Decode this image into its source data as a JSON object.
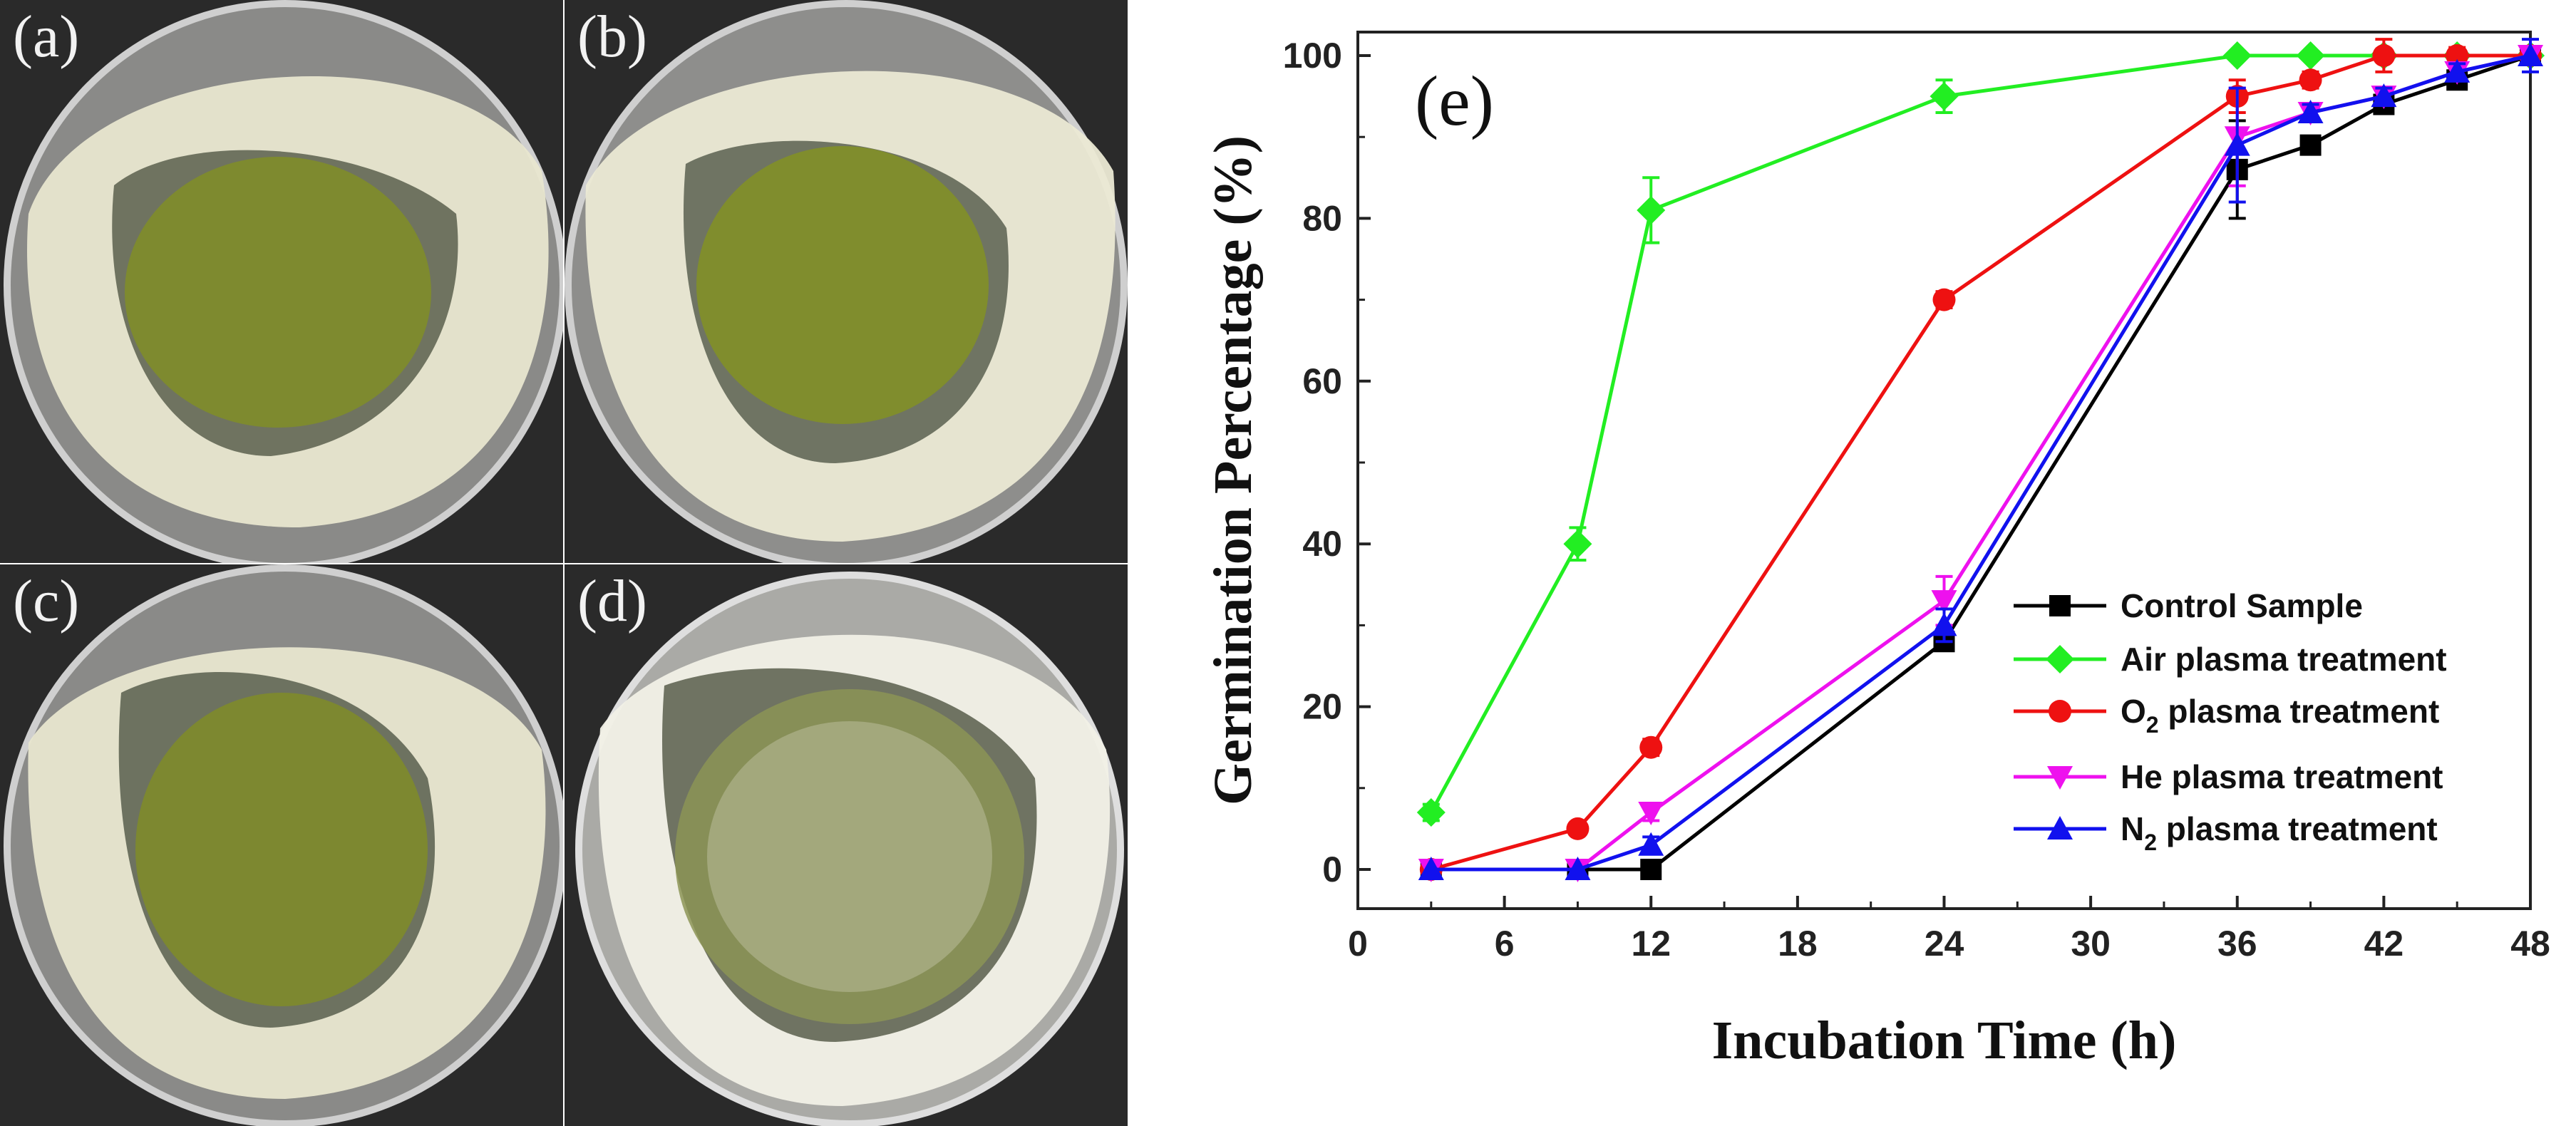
{
  "photos": [
    {
      "label": "(a)"
    },
    {
      "label": "(b)"
    },
    {
      "label": "(c)"
    },
    {
      "label": "(d)"
    }
  ],
  "chart_data": {
    "type": "line",
    "panel_label": "(e)",
    "xlabel": "Incubation Time (h)",
    "ylabel": "Germination Percentage (%)",
    "xlim": [
      0,
      48
    ],
    "ylim": [
      0,
      100
    ],
    "x_ticks": [
      0,
      6,
      12,
      18,
      24,
      30,
      36,
      42,
      48
    ],
    "y_ticks": [
      0,
      20,
      40,
      60,
      80,
      100
    ],
    "grid": false,
    "legend_position": "bottom-right",
    "series": [
      {
        "name": "Control Sample",
        "color": "#000000",
        "marker": "square",
        "x": [
          3,
          9,
          12,
          24,
          36,
          39,
          42,
          45,
          48
        ],
        "y": [
          0,
          0,
          0,
          28,
          86,
          89,
          94,
          97,
          100
        ],
        "err": [
          0,
          0,
          0,
          1,
          6,
          1,
          1,
          1,
          1
        ]
      },
      {
        "name": "Air plasma treatment",
        "color": "#22ee22",
        "marker": "diamond",
        "x": [
          3,
          9,
          12,
          24,
          36,
          39,
          42,
          45,
          48
        ],
        "y": [
          7,
          40,
          81,
          95,
          100,
          100,
          100,
          100,
          100
        ],
        "err": [
          1,
          2,
          4,
          2,
          0,
          0,
          0,
          0,
          0
        ]
      },
      {
        "name": "O2 plasma treatment",
        "name_display": {
          "prefix": "O",
          "sub": "2",
          "suffix": " plasma treatment"
        },
        "color": "#ee1111",
        "marker": "circle",
        "x": [
          3,
          9,
          12,
          24,
          36,
          39,
          42,
          45,
          48
        ],
        "y": [
          0,
          5,
          15,
          70,
          95,
          97,
          100,
          100,
          100
        ],
        "err": [
          0,
          0,
          1,
          1,
          2,
          1,
          2,
          1,
          1
        ]
      },
      {
        "name": "He plasma treatment",
        "color": "#ee11ee",
        "marker": "triangle-down",
        "x": [
          3,
          9,
          12,
          24,
          36,
          39,
          42,
          45,
          48
        ],
        "y": [
          0,
          0,
          7,
          33,
          90,
          93,
          95,
          98,
          100
        ],
        "err": [
          0,
          0,
          1,
          3,
          6,
          1,
          1,
          1,
          1
        ]
      },
      {
        "name": "N2 plasma treatment",
        "name_display": {
          "prefix": "N",
          "sub": "2",
          "suffix": " plasma treatment"
        },
        "color": "#1111ee",
        "marker": "triangle-up",
        "x": [
          3,
          9,
          12,
          24,
          36,
          39,
          42,
          45,
          48
        ],
        "y": [
          0,
          0,
          3,
          30,
          89,
          93,
          95,
          98,
          100
        ],
        "err": [
          0,
          0,
          1,
          2,
          7,
          1,
          1,
          1,
          2
        ]
      }
    ]
  }
}
